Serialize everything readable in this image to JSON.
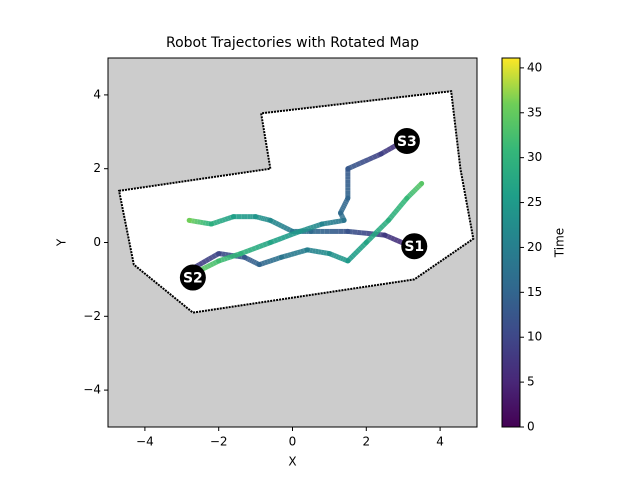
{
  "chart_data": {
    "type": "trajectory",
    "title": "Robot Trajectories with Rotated Map",
    "x_label": "X",
    "y_label": "Y",
    "xlim": [
      -5,
      5
    ],
    "ylim": [
      -5,
      5
    ],
    "xticks": [
      {
        "value": -4,
        "label": "−4"
      },
      {
        "value": -2,
        "label": "−2"
      },
      0,
      2,
      4
    ],
    "yticks": [
      {
        "value": -4,
        "label": "−4"
      },
      {
        "value": -2,
        "label": "−2"
      },
      0,
      2,
      4
    ],
    "background": "#cccccc",
    "map": {
      "fill": "#ffffff",
      "edge": "#000000",
      "x": [
        -4.7,
        -0.6,
        -0.85,
        4.3,
        4.55,
        4.9,
        3.3,
        -2.7,
        -4.3
      ],
      "y": [
        1.4,
        2.0,
        3.5,
        4.1,
        2.0,
        0.1,
        -1.0,
        -1.9,
        -0.6
      ]
    },
    "colormap": "viridis",
    "colorbar": {
      "label": "Time",
      "clim": [
        0,
        41.1
      ],
      "ticks": [
        0,
        5,
        10,
        15,
        20,
        25,
        30,
        35,
        40
      ]
    },
    "series": [
      {
        "x": [
          3.2,
          2.5,
          1.5,
          0.5,
          0,
          -0.6,
          -1.0,
          -1.6,
          -2.2,
          -2.8
        ],
        "y": [
          -0.1,
          0.2,
          0.3,
          0.3,
          0.3,
          0.6,
          0.7,
          0.7,
          0.5,
          0.6
        ],
        "t": [
          5,
          8,
          12,
          16,
          19,
          22,
          24,
          26,
          29,
          36
        ]
      },
      {
        "x": [
          -2.7,
          -2.0,
          -1.3,
          -0.9,
          -0.3,
          0.4,
          1.0,
          1.5,
          2.0,
          2.6,
          3.1,
          3.5
        ],
        "y": [
          -0.7,
          -0.3,
          -0.4,
          -0.6,
          -0.4,
          -0.2,
          -0.3,
          -0.5,
          0.0,
          0.6,
          1.2,
          1.6
        ],
        "t": [
          8,
          10,
          13,
          15,
          18,
          20,
          23,
          25,
          27,
          29,
          31,
          34
        ]
      },
      {
        "x": [
          3.1,
          2.4,
          1.5,
          1.5,
          1.3,
          1.4,
          0.8,
          0.2,
          -0.6,
          -1.4,
          -2.0,
          -2.6
        ],
        "y": [
          2.8,
          2.4,
          2.0,
          1.2,
          0.8,
          0.6,
          0.5,
          0.3,
          0.0,
          -0.3,
          -0.5,
          -0.8
        ],
        "t": [
          5,
          9,
          13,
          15,
          16,
          18,
          21,
          24,
          27,
          30,
          32,
          35
        ]
      }
    ],
    "stations": [
      {
        "label": "S1",
        "x": 3.3,
        "y": -0.1
      },
      {
        "label": "S2",
        "x": -2.7,
        "y": -0.95
      },
      {
        "label": "S3",
        "x": 3.1,
        "y": 2.75
      }
    ]
  }
}
